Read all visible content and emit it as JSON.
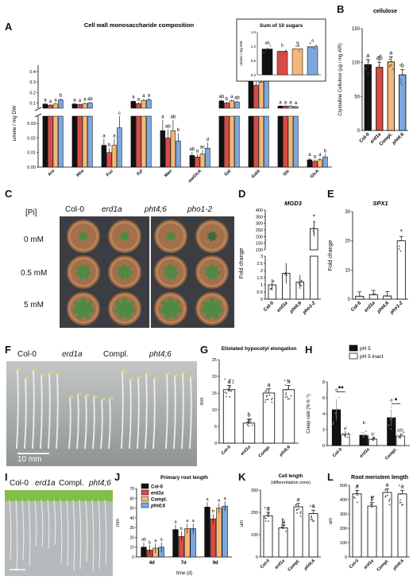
{
  "panel_letters": [
    "A",
    "B",
    "C",
    "D",
    "E",
    "F",
    "G",
    "H",
    "I",
    "J",
    "K",
    "L"
  ],
  "colors": {
    "col0": "#111111",
    "erd1a": "#d94b44",
    "compl": "#f2b878",
    "pht46": "#7ba7dc",
    "white": "#ffffff"
  },
  "photoC": {
    "genotypes": [
      "Col-0",
      "erd1a",
      "pht4;6",
      "pho1-2"
    ],
    "pi_header": "[Pi]",
    "rows": [
      "0 mM",
      "0.5 mM",
      "5 mM"
    ]
  },
  "photoF": {
    "genotypes": [
      "Col-0",
      "erd1a",
      "Compl.",
      "pht4;6"
    ],
    "scale": "10 mm"
  },
  "photoI": {
    "genotypes": [
      "Col-0",
      "erd1a",
      "Compl.",
      "pht4;6"
    ]
  },
  "chart_data": [
    {
      "id": "A",
      "type": "bar",
      "title": "Cell wall monosaccharide composition",
      "ylabel": "umole / mg DW",
      "categories": [
        "Ara",
        "Rha",
        "Fuc",
        "Xyl",
        "Man",
        "meGlcA",
        "Gal",
        "GalA",
        "Glc",
        "GlcA"
      ],
      "series": [
        {
          "name": "Col-0",
          "values": [
            0.09,
            0.09,
            0.015,
            0.115,
            0.025,
            0.008,
            0.12,
            0.33,
            0.07,
            0.005
          ]
        },
        {
          "name": "erd1a",
          "values": [
            0.08,
            0.085,
            0.01,
            0.095,
            0.02,
            0.007,
            0.1,
            0.27,
            0.07,
            0.004
          ]
        },
        {
          "name": "Compl.",
          "values": [
            0.09,
            0.095,
            0.015,
            0.125,
            0.025,
            0.009,
            0.12,
            0.3,
            0.07,
            0.005
          ]
        },
        {
          "name": "pht4;6",
          "values": [
            0.13,
            0.1,
            0.027,
            0.13,
            0.018,
            0.013,
            0.11,
            0.33,
            0.065,
            0.007
          ]
        }
      ],
      "letters": [
        [
          "a",
          "a",
          "a",
          "b"
        ],
        [
          "a",
          "a",
          "a",
          "ab"
        ],
        [
          "a",
          "b",
          "a",
          "c"
        ],
        [
          "a",
          "a",
          "a",
          "a"
        ],
        [
          "a",
          "ab",
          "ab",
          "b"
        ],
        [
          "ab",
          "a",
          "ac",
          "d"
        ],
        [
          "ab",
          "b",
          "a",
          "ab"
        ],
        [
          "a",
          "b",
          "a",
          "a"
        ],
        [
          "a",
          "a",
          "a",
          "a"
        ],
        [
          "a",
          "a",
          "a",
          "b"
        ]
      ],
      "yticks_upper": [
        "0.1",
        "0.2",
        "0.3",
        "0.4"
      ],
      "yticks_lower": [
        "0.00",
        "0.01",
        "0.02",
        "0.03"
      ],
      "inset": {
        "title": "Sum of 10 sugars",
        "ylabel": "umole / mg DW",
        "values": [
          0.9,
          0.82,
          0.91,
          0.98
        ],
        "letters": [
          "ab",
          "b",
          "a",
          "a"
        ],
        "yticks": [
          "0.0",
          "0.5",
          "1.0",
          "1.5"
        ],
        "ylim": [
          0,
          1.5
        ]
      }
    },
    {
      "id": "B",
      "type": "bar",
      "title": "cellulose",
      "ylabel": "Crystalline Cellulose (µg / mg AIR)",
      "categories": [
        "Col-0",
        "erd1a",
        "Compl.",
        "pht4;6"
      ],
      "values": [
        97,
        93,
        101,
        82
      ],
      "letters": [
        "a",
        "ab",
        "a",
        "b"
      ],
      "yticks": [
        "0",
        "50",
        "100",
        "150"
      ],
      "ylim": [
        0,
        150
      ]
    },
    {
      "id": "D",
      "type": "bar",
      "title": "MGD3",
      "ylabel": "Fold change",
      "categories": [
        "Col-0",
        "erd1a",
        "pht4;6",
        "pho1-2"
      ],
      "values": [
        1,
        1.8,
        1.2,
        260
      ],
      "letters": [
        "",
        "",
        "",
        "*"
      ],
      "yticks": [
        "0",
        "0.5",
        "1",
        "1.5",
        "2",
        "2.5",
        "3",
        "100",
        "150",
        "200",
        "250",
        "300",
        "350",
        "400"
      ]
    },
    {
      "id": "E",
      "type": "bar",
      "title": "SPX1",
      "ylabel": "Fold change",
      "categories": [
        "Col-0",
        "erd1a",
        "pht4;6",
        "pho1-2"
      ],
      "values": [
        1,
        1.5,
        1.1,
        20
      ],
      "letters": [
        "",
        "",
        "",
        "*"
      ],
      "yticks": [
        "0",
        "10",
        "20",
        "30"
      ],
      "ylim": [
        0,
        30
      ]
    },
    {
      "id": "G",
      "type": "bar",
      "title": "Etiolated hypocotyl elongation",
      "ylabel": "mm",
      "categories": [
        "Col-0",
        "erd1a",
        "Compl.",
        "pht4;6"
      ],
      "values": [
        16,
        6,
        15,
        16
      ],
      "letters": [
        "a",
        "b",
        "a",
        "a"
      ],
      "yticks": [
        "0",
        "5",
        "10",
        "15",
        "20",
        "25"
      ],
      "ylim": [
        0,
        25
      ]
    },
    {
      "id": "H",
      "type": "bar",
      "ylabel": "Creep rate (% h⁻¹)",
      "categories": [
        "Col-0",
        "erd1a",
        "Compl."
      ],
      "series": [
        {
          "name": "pH 5",
          "values": [
            4.5,
            1.3,
            3.5
          ]
        },
        {
          "name": "pH 5 inact",
          "values": [
            1.4,
            0.8,
            1.2
          ]
        }
      ],
      "letters": [
        [
          "a",
          "a'"
        ],
        [
          "b",
          "b'"
        ],
        [
          "a",
          "a'b'"
        ]
      ],
      "sig": [
        "**",
        "",
        "*"
      ],
      "yticks": [
        "0",
        "2",
        "4",
        "6",
        "8"
      ],
      "ylim": [
        0,
        8
      ]
    },
    {
      "id": "J",
      "type": "bar",
      "title": "Primary root length",
      "ylabel": "mm",
      "xlabel": "time (d)",
      "categories": [
        "4d",
        "7d",
        "9d"
      ],
      "series": [
        {
          "name": "Col-0",
          "values": [
            10,
            28,
            51
          ]
        },
        {
          "name": "erd1a",
          "values": [
            7,
            21,
            39
          ]
        },
        {
          "name": "Compl.",
          "values": [
            9,
            29,
            50
          ]
        },
        {
          "name": "pht4;6",
          "values": [
            10,
            29,
            52
          ]
        }
      ],
      "letters": [
        [
          "ab",
          "b",
          "a",
          "a"
        ],
        [
          "a",
          "b",
          "a",
          "a"
        ],
        [
          "a",
          "b",
          "a",
          "a"
        ]
      ],
      "yticks": [
        "0",
        "10",
        "20",
        "30",
        "40",
        "50",
        "60",
        "70"
      ],
      "ylim": [
        0,
        70
      ]
    },
    {
      "id": "K",
      "type": "bar",
      "title": "Cell length",
      "subtitle": "(differentiation zone)",
      "ylabel": "um",
      "categories": [
        "Col-0",
        "erd1a",
        "Compl.",
        "pht4;6"
      ],
      "values": [
        185,
        130,
        225,
        195
      ],
      "letters": [
        "a",
        "b",
        "a",
        "a"
      ],
      "yticks": [
        "0",
        "100",
        "200",
        "300"
      ],
      "ylim": [
        0,
        300
      ]
    },
    {
      "id": "L",
      "type": "bar",
      "title": "Root meristem length",
      "ylabel": "um",
      "categories": [
        "Col-0",
        "erd1a",
        "Compl.",
        "pht4;6"
      ],
      "values": [
        440,
        355,
        450,
        440
      ],
      "letters": [
        "a",
        "b",
        "a",
        "a"
      ],
      "yticks": [
        "0",
        "100",
        "200",
        "300",
        "400",
        "500"
      ],
      "ylim": [
        0,
        500
      ]
    }
  ]
}
